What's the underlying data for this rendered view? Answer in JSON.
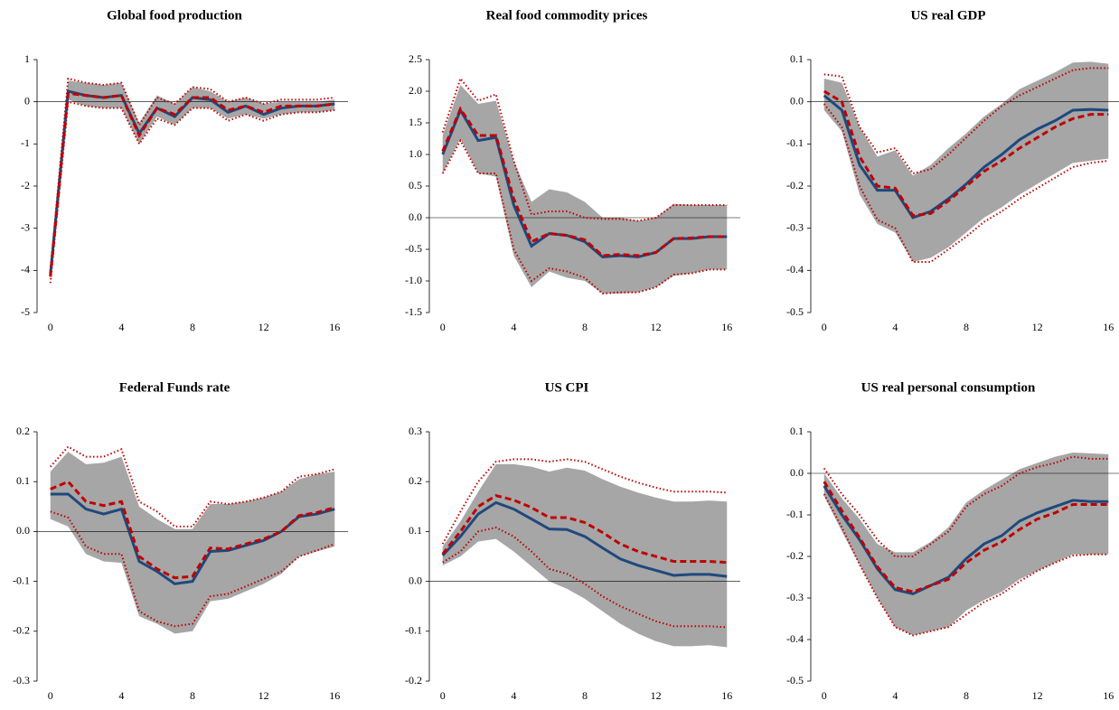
{
  "chart_data": [
    {
      "type": "line",
      "title": "Global food production",
      "x": [
        0,
        1,
        2,
        3,
        4,
        5,
        6,
        7,
        8,
        9,
        10,
        11,
        12,
        13,
        14,
        15,
        16
      ],
      "xlim": [
        -0.75,
        16.75
      ],
      "xticks": [
        0,
        4,
        8,
        12,
        16
      ],
      "ylim": [
        -5,
        1
      ],
      "yticks": [
        -5,
        -4,
        -3,
        -2,
        -1,
        0,
        1
      ],
      "band": {
        "color": "#a6a6a6",
        "lower": [
          -4.25,
          0.05,
          -0.1,
          -0.15,
          -0.15,
          -1.0,
          -0.35,
          -0.55,
          -0.15,
          -0.15,
          -0.4,
          -0.3,
          -0.4,
          -0.3,
          -0.25,
          -0.25,
          -0.2
        ],
        "upper": [
          -3.95,
          0.5,
          0.45,
          0.4,
          0.45,
          -0.5,
          0.15,
          -0.05,
          0.35,
          0.25,
          0.0,
          0.1,
          -0.05,
          0.0,
          0.0,
          0.0,
          0.05
        ]
      },
      "series": [
        {
          "color": "#c00000",
          "style": "dotted",
          "values": [
            -4.0,
            0.55,
            0.45,
            0.4,
            0.45,
            -0.55,
            0.1,
            -0.05,
            0.35,
            0.3,
            0.0,
            0.1,
            -0.05,
            0.05,
            0.05,
            0.05,
            0.1
          ]
        },
        {
          "color": "#c00000",
          "style": "dotted",
          "values": [
            -4.3,
            0.0,
            -0.1,
            -0.15,
            -0.15,
            -1.0,
            -0.4,
            -0.55,
            -0.15,
            -0.15,
            -0.45,
            -0.3,
            -0.45,
            -0.3,
            -0.25,
            -0.25,
            -0.2
          ]
        },
        {
          "color": "#1f497d",
          "style": "solid",
          "values": [
            -4.1,
            0.25,
            0.15,
            0.1,
            0.15,
            -0.75,
            -0.15,
            -0.35,
            0.1,
            0.05,
            -0.25,
            -0.1,
            -0.3,
            -0.15,
            -0.1,
            -0.1,
            -0.05
          ]
        },
        {
          "color": "#c00000",
          "style": "dashed",
          "values": [
            -4.15,
            0.2,
            0.15,
            0.1,
            0.15,
            -0.8,
            -0.15,
            -0.3,
            0.1,
            0.1,
            -0.2,
            -0.1,
            -0.25,
            -0.1,
            -0.1,
            -0.1,
            -0.05
          ]
        }
      ]
    },
    {
      "type": "line",
      "title": "Real food commodity prices",
      "x": [
        0,
        1,
        2,
        3,
        4,
        5,
        6,
        7,
        8,
        9,
        10,
        11,
        12,
        13,
        14,
        15,
        16
      ],
      "xlim": [
        -0.75,
        16.75
      ],
      "xticks": [
        0,
        4,
        8,
        12,
        16
      ],
      "ylim": [
        -1.5,
        2.5
      ],
      "yticks": [
        -1.5,
        {
          "value": -1,
          "label": "-1.0"
        },
        -0.5,
        {
          "value": 0,
          "label": "0.0"
        },
        0.5,
        {
          "value": 1,
          "label": "1.0"
        },
        1.5,
        {
          "value": 2,
          "label": "2.0"
        },
        2.5
      ],
      "band": {
        "color": "#a6a6a6",
        "lower": [
          0.7,
          1.25,
          0.7,
          0.65,
          -0.6,
          -1.1,
          -0.85,
          -0.95,
          -1.0,
          -1.2,
          -1.2,
          -1.18,
          -1.1,
          -0.92,
          -0.88,
          -0.82,
          -0.82
        ],
        "upper": [
          1.3,
          2.1,
          1.8,
          1.85,
          0.9,
          0.25,
          0.45,
          0.4,
          0.25,
          0.0,
          0.0,
          -0.05,
          0.0,
          0.22,
          0.2,
          0.2,
          0.2
        ]
      },
      "series": [
        {
          "color": "#c00000",
          "style": "dotted",
          "values": [
            1.35,
            2.2,
            1.85,
            1.95,
            0.9,
            0.05,
            0.1,
            0.1,
            0.0,
            -0.02,
            -0.02,
            -0.05,
            0.0,
            0.2,
            0.2,
            0.2,
            0.2
          ]
        },
        {
          "color": "#c00000",
          "style": "dotted",
          "values": [
            0.7,
            1.22,
            0.7,
            0.7,
            -0.5,
            -1.0,
            -0.8,
            -0.85,
            -0.95,
            -1.2,
            -1.18,
            -1.18,
            -1.1,
            -0.9,
            -0.88,
            -0.82,
            -0.82
          ]
        },
        {
          "color": "#1f497d",
          "style": "solid",
          "values": [
            1.0,
            1.7,
            1.22,
            1.27,
            0.2,
            -0.45,
            -0.25,
            -0.28,
            -0.38,
            -0.62,
            -0.6,
            -0.62,
            -0.55,
            -0.33,
            -0.33,
            -0.3,
            -0.3
          ]
        },
        {
          "color": "#c00000",
          "style": "dashed",
          "values": [
            1.05,
            1.72,
            1.3,
            1.3,
            0.3,
            -0.38,
            -0.25,
            -0.28,
            -0.35,
            -0.6,
            -0.58,
            -0.6,
            -0.55,
            -0.33,
            -0.32,
            -0.3,
            -0.3
          ]
        }
      ]
    },
    {
      "type": "line",
      "title": "US real GDP",
      "x": [
        0,
        1,
        2,
        3,
        4,
        5,
        6,
        7,
        8,
        9,
        10,
        11,
        12,
        13,
        14,
        15,
        16
      ],
      "xlim": [
        -0.75,
        16.75
      ],
      "xticks": [
        0,
        4,
        8,
        12,
        16
      ],
      "ylim": [
        -0.5,
        0.1
      ],
      "yticks": [
        -0.5,
        -0.4,
        -0.3,
        -0.2,
        -0.1,
        {
          "value": 0,
          "label": "0.0"
        },
        0.1
      ],
      "band": {
        "color": "#a6a6a6",
        "lower": [
          -0.02,
          -0.07,
          -0.22,
          -0.29,
          -0.31,
          -0.38,
          -0.37,
          -0.345,
          -0.31,
          -0.275,
          -0.25,
          -0.22,
          -0.195,
          -0.17,
          -0.145,
          -0.14,
          -0.135
        ],
        "upper": [
          0.055,
          0.045,
          -0.06,
          -0.13,
          -0.115,
          -0.175,
          -0.15,
          -0.11,
          -0.075,
          -0.035,
          -0.005,
          0.03,
          0.05,
          0.07,
          0.093,
          0.095,
          0.09
        ]
      },
      "series": [
        {
          "color": "#c00000",
          "style": "dotted",
          "values": [
            0.065,
            0.06,
            -0.06,
            -0.12,
            -0.11,
            -0.17,
            -0.16,
            -0.125,
            -0.085,
            -0.045,
            -0.01,
            0.015,
            0.035,
            0.055,
            0.075,
            0.08,
            0.08
          ]
        },
        {
          "color": "#c00000",
          "style": "dotted",
          "values": [
            -0.005,
            -0.06,
            -0.2,
            -0.28,
            -0.3,
            -0.38,
            -0.38,
            -0.35,
            -0.32,
            -0.285,
            -0.26,
            -0.23,
            -0.205,
            -0.18,
            -0.155,
            -0.145,
            -0.14
          ]
        },
        {
          "color": "#1f497d",
          "style": "solid",
          "values": [
            0.015,
            -0.02,
            -0.15,
            -0.21,
            -0.21,
            -0.275,
            -0.26,
            -0.23,
            -0.195,
            -0.155,
            -0.125,
            -0.09,
            -0.065,
            -0.045,
            -0.02,
            -0.018,
            -0.02
          ]
        },
        {
          "color": "#c00000",
          "style": "dashed",
          "values": [
            0.025,
            0.0,
            -0.13,
            -0.2,
            -0.205,
            -0.27,
            -0.265,
            -0.235,
            -0.2,
            -0.165,
            -0.14,
            -0.11,
            -0.085,
            -0.06,
            -0.04,
            -0.03,
            -0.03
          ]
        }
      ]
    },
    {
      "type": "line",
      "title": "Federal Funds rate",
      "x": [
        0,
        1,
        2,
        3,
        4,
        5,
        6,
        7,
        8,
        9,
        10,
        11,
        12,
        13,
        14,
        15,
        16
      ],
      "xlim": [
        -0.75,
        16.75
      ],
      "xticks": [
        0,
        4,
        8,
        12,
        16
      ],
      "ylim": [
        -0.3,
        0.2
      ],
      "yticks": [
        -0.3,
        -0.2,
        -0.1,
        {
          "value": 0,
          "label": "0.0"
        },
        0.1,
        0.2
      ],
      "band": {
        "color": "#a6a6a6",
        "lower": [
          0.025,
          0.01,
          -0.045,
          -0.06,
          -0.063,
          -0.17,
          -0.185,
          -0.205,
          -0.2,
          -0.14,
          -0.135,
          -0.12,
          -0.105,
          -0.085,
          -0.05,
          -0.04,
          -0.03
        ],
        "upper": [
          0.12,
          0.16,
          0.135,
          0.138,
          0.15,
          0.05,
          0.025,
          0.005,
          0.005,
          0.055,
          0.055,
          0.06,
          0.068,
          0.08,
          0.105,
          0.115,
          0.12
        ]
      },
      "series": [
        {
          "color": "#c00000",
          "style": "dotted",
          "values": [
            0.13,
            0.17,
            0.15,
            0.15,
            0.165,
            0.06,
            0.04,
            0.01,
            0.01,
            0.06,
            0.055,
            0.06,
            0.068,
            0.08,
            0.11,
            0.115,
            0.125
          ]
        },
        {
          "color": "#c00000",
          "style": "dotted",
          "values": [
            0.04,
            0.028,
            -0.03,
            -0.045,
            -0.045,
            -0.16,
            -0.18,
            -0.19,
            -0.185,
            -0.13,
            -0.125,
            -0.11,
            -0.095,
            -0.08,
            -0.05,
            -0.038,
            -0.025
          ]
        },
        {
          "color": "#1f497d",
          "style": "solid",
          "values": [
            0.075,
            0.075,
            0.045,
            0.035,
            0.045,
            -0.06,
            -0.08,
            -0.105,
            -0.1,
            -0.04,
            -0.038,
            -0.028,
            -0.018,
            0.0,
            0.03,
            0.035,
            0.045
          ]
        },
        {
          "color": "#c00000",
          "style": "dashed",
          "values": [
            0.085,
            0.1,
            0.06,
            0.052,
            0.06,
            -0.05,
            -0.075,
            -0.093,
            -0.09,
            -0.033,
            -0.035,
            -0.025,
            -0.015,
            0.0,
            0.032,
            0.038,
            0.048
          ]
        }
      ]
    },
    {
      "type": "line",
      "title": "US CPI",
      "x": [
        0,
        1,
        2,
        3,
        4,
        5,
        6,
        7,
        8,
        9,
        10,
        11,
        12,
        13,
        14,
        15,
        16
      ],
      "xlim": [
        -0.75,
        16.75
      ],
      "xticks": [
        0,
        4,
        8,
        12,
        16
      ],
      "ylim": [
        -0.2,
        0.3
      ],
      "yticks": [
        -0.2,
        -0.1,
        {
          "value": 0,
          "label": "0.0"
        },
        0.1,
        0.2,
        0.3
      ],
      "band": {
        "color": "#a6a6a6",
        "lower": [
          0.032,
          0.05,
          0.08,
          0.085,
          0.06,
          0.03,
          0.0,
          -0.015,
          -0.035,
          -0.06,
          -0.085,
          -0.105,
          -0.12,
          -0.13,
          -0.13,
          -0.128,
          -0.132
        ],
        "upper": [
          0.07,
          0.12,
          0.18,
          0.235,
          0.235,
          0.23,
          0.22,
          0.228,
          0.222,
          0.205,
          0.19,
          0.178,
          0.168,
          0.16,
          0.16,
          0.162,
          0.16
        ]
      },
      "series": [
        {
          "color": "#c00000",
          "style": "dotted",
          "values": [
            0.075,
            0.14,
            0.2,
            0.24,
            0.245,
            0.245,
            0.24,
            0.245,
            0.24,
            0.225,
            0.21,
            0.198,
            0.188,
            0.18,
            0.18,
            0.18,
            0.178
          ]
        },
        {
          "color": "#c00000",
          "style": "dotted",
          "values": [
            0.038,
            0.06,
            0.1,
            0.108,
            0.09,
            0.06,
            0.025,
            0.015,
            -0.005,
            -0.03,
            -0.05,
            -0.065,
            -0.08,
            -0.09,
            -0.09,
            -0.09,
            -0.092
          ]
        },
        {
          "color": "#1f497d",
          "style": "solid",
          "values": [
            0.052,
            0.09,
            0.135,
            0.158,
            0.145,
            0.125,
            0.105,
            0.104,
            0.09,
            0.067,
            0.045,
            0.032,
            0.022,
            0.012,
            0.014,
            0.014,
            0.01
          ]
        },
        {
          "color": "#c00000",
          "style": "dashed",
          "values": [
            0.055,
            0.1,
            0.15,
            0.172,
            0.163,
            0.148,
            0.128,
            0.128,
            0.118,
            0.098,
            0.075,
            0.06,
            0.05,
            0.04,
            0.04,
            0.04,
            0.038
          ]
        }
      ]
    },
    {
      "type": "line",
      "title": "US real personal consumption",
      "x": [
        0,
        1,
        2,
        3,
        4,
        5,
        6,
        7,
        8,
        9,
        10,
        11,
        12,
        13,
        14,
        15,
        16
      ],
      "xlim": [
        -0.75,
        16.75
      ],
      "xticks": [
        0,
        4,
        8,
        12,
        16
      ],
      "ylim": [
        -0.5,
        0.1
      ],
      "yticks": [
        -0.5,
        -0.4,
        -0.3,
        -0.2,
        -0.1,
        {
          "value": 0,
          "label": "0.0"
        },
        0.1
      ],
      "band": {
        "color": "#a6a6a6",
        "lower": [
          -0.055,
          -0.14,
          -0.22,
          -0.3,
          -0.37,
          -0.39,
          -0.38,
          -0.37,
          -0.33,
          -0.305,
          -0.285,
          -0.255,
          -0.235,
          -0.215,
          -0.195,
          -0.195,
          -0.195
        ],
        "upper": [
          0.0,
          -0.06,
          -0.11,
          -0.17,
          -0.19,
          -0.19,
          -0.165,
          -0.13,
          -0.07,
          -0.04,
          -0.015,
          0.01,
          0.025,
          0.04,
          0.05,
          0.048,
          0.046
        ]
      },
      "series": [
        {
          "color": "#c00000",
          "style": "dotted",
          "values": [
            0.012,
            -0.05,
            -0.1,
            -0.16,
            -0.2,
            -0.2,
            -0.17,
            -0.14,
            -0.08,
            -0.05,
            -0.03,
            0.0,
            0.015,
            0.025,
            0.04,
            0.035,
            0.035
          ]
        },
        {
          "color": "#c00000",
          "style": "dotted",
          "values": [
            -0.05,
            -0.13,
            -0.22,
            -0.3,
            -0.37,
            -0.39,
            -0.38,
            -0.37,
            -0.34,
            -0.31,
            -0.29,
            -0.26,
            -0.235,
            -0.215,
            -0.198,
            -0.195,
            -0.195
          ]
        },
        {
          "color": "#1f497d",
          "style": "solid",
          "values": [
            -0.03,
            -0.1,
            -0.16,
            -0.23,
            -0.28,
            -0.29,
            -0.27,
            -0.25,
            -0.205,
            -0.17,
            -0.15,
            -0.115,
            -0.095,
            -0.08,
            -0.065,
            -0.068,
            -0.068
          ]
        },
        {
          "color": "#c00000",
          "style": "dashed",
          "values": [
            -0.02,
            -0.09,
            -0.155,
            -0.225,
            -0.275,
            -0.285,
            -0.27,
            -0.255,
            -0.215,
            -0.185,
            -0.165,
            -0.135,
            -0.11,
            -0.095,
            -0.075,
            -0.075,
            -0.075
          ]
        }
      ]
    }
  ]
}
